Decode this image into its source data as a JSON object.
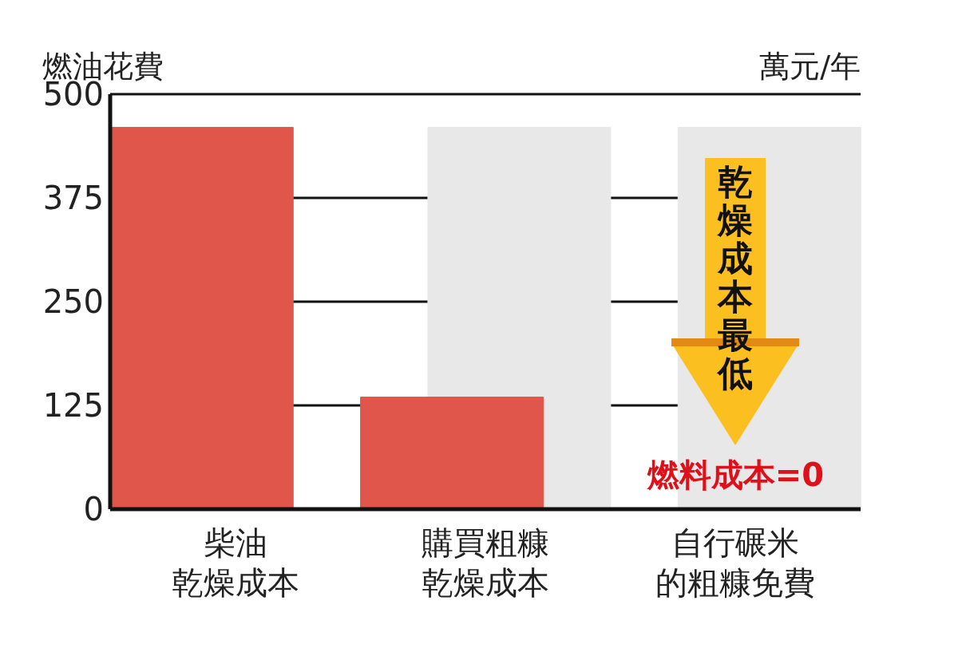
{
  "chart_data": {
    "type": "bar",
    "ylabel": "燃油花費",
    "categories": [
      "柴油乾燥成本",
      "購買粗糠乾燥成本",
      "自行碾米的粗糠免費"
    ],
    "series": [
      {
        "color": "#e8e8e8",
        "values": [
          null,
          460,
          460
        ]
      },
      {
        "color": "#e0564a",
        "values": [
          460,
          135,
          0
        ]
      }
    ],
    "ylim": [
      0,
      500
    ],
    "yticks": [
      0,
      125,
      250,
      375,
      500
    ],
    "grid": "y",
    "legend": false,
    "annotations": [
      "萬元/年",
      "乾燥成本最低",
      {
        "text": "燃料成本=0",
        "x": "自行碾米的粗糠免費",
        "y": 0
      }
    ]
  }
}
